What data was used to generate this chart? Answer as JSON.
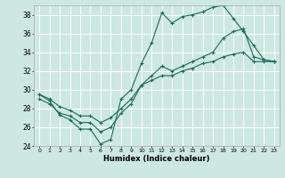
{
  "xlabel": "Humidex (Indice chaleur)",
  "bg_color": "#cce8e0",
  "grid_color": "#ffffff",
  "line_color": "#1a6b5a",
  "xlim": [
    -0.5,
    23.5
  ],
  "ylim": [
    24,
    39
  ],
  "xticks": [
    0,
    1,
    2,
    3,
    4,
    5,
    6,
    7,
    8,
    9,
    10,
    11,
    12,
    13,
    14,
    15,
    16,
    17,
    18,
    19,
    20,
    21,
    22,
    23
  ],
  "yticks": [
    24,
    26,
    28,
    30,
    32,
    34,
    36,
    38
  ],
  "line1_x": [
    0,
    1,
    2,
    3,
    4,
    5,
    6,
    7,
    8,
    9,
    10,
    11,
    12,
    13,
    14,
    15,
    16,
    17,
    18,
    19,
    20,
    21,
    22,
    23
  ],
  "line1_y": [
    29.5,
    28.8,
    27.3,
    26.8,
    25.8,
    25.8,
    24.2,
    24.7,
    29.0,
    30.0,
    32.8,
    35.0,
    38.2,
    37.1,
    37.8,
    38.0,
    38.3,
    38.8,
    39.0,
    37.6,
    36.2,
    34.7,
    33.2,
    33.0
  ],
  "line2_x": [
    0,
    1,
    2,
    3,
    4,
    5,
    6,
    7,
    8,
    9,
    10,
    11,
    12,
    13,
    14,
    15,
    16,
    17,
    18,
    19,
    20,
    21,
    22,
    23
  ],
  "line2_y": [
    29.0,
    28.5,
    27.5,
    27.2,
    26.5,
    26.5,
    25.5,
    26.0,
    27.5,
    28.5,
    30.5,
    31.5,
    32.5,
    32.0,
    32.5,
    33.0,
    33.5,
    34.0,
    35.5,
    36.2,
    36.5,
    33.5,
    33.2,
    33.0
  ],
  "line3_x": [
    0,
    1,
    2,
    3,
    4,
    5,
    6,
    7,
    8,
    9,
    10,
    11,
    12,
    13,
    14,
    15,
    16,
    17,
    18,
    19,
    20,
    21,
    22,
    23
  ],
  "line3_y": [
    29.5,
    29.0,
    28.2,
    27.8,
    27.2,
    27.2,
    26.5,
    27.0,
    28.0,
    29.0,
    30.5,
    31.0,
    31.5,
    31.5,
    32.0,
    32.3,
    32.8,
    33.0,
    33.5,
    33.8,
    34.0,
    33.0,
    33.0,
    33.0
  ]
}
